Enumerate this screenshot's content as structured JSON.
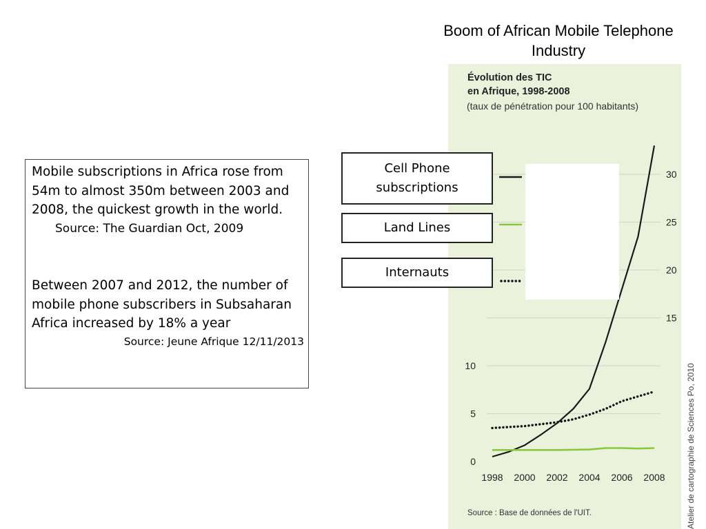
{
  "slide": {
    "title": "Boom of African Mobile Telephone Industry"
  },
  "textbox": {
    "para1": "Mobile subscriptions in Africa rose from 54m to almost 350m between 2003 and 2008, the quickest growth in the world.",
    "source1": "Source:  The Guardian Oct, 2009",
    "para2": "Between 2007 and 2012, the number of mobile phone subscribers in Subsaharan Africa increased by 18% a year",
    "source2": "Source: Jeune Afrique 12/11/2013"
  },
  "panel": {
    "title_line1": "Évolution des TIC",
    "title_line2": "en Afrique, 1998-2008",
    "subtitle": "(taux de pénétration pour 100 habitants)",
    "source": "Source : Base de données de l'UIT.",
    "credit": "Atelier de cartographie de Sciences Po, 2010"
  },
  "legend": {
    "cell": "Cell Phone subscriptions",
    "land": "Land Lines",
    "internet": "Internauts"
  },
  "colors": {
    "cell": "#1a1a1a",
    "land": "#8cc63f",
    "internet": "#111111",
    "panel_bg": "#eaf2dc"
  },
  "chart_data": {
    "type": "line",
    "title": "Évolution des TIC en Afrique, 1998-2008",
    "subtitle": "(taux de pénétration pour 100 habitants)",
    "xlabel": "",
    "ylabel": "",
    "x_ticks": [
      "1998",
      "2000",
      "2002",
      "2004",
      "2006",
      "2008"
    ],
    "y_ticks": [
      "0",
      "5",
      "10",
      "15",
      "20",
      "25",
      "30"
    ],
    "xlim": [
      1998,
      2008
    ],
    "ylim": [
      0,
      35
    ],
    "series": [
      {
        "name": "Cell Phone subscriptions",
        "style": "solid",
        "x": [
          1998,
          1999,
          2000,
          2001,
          2002,
          2003,
          2004,
          2005,
          2006,
          2007,
          2008
        ],
        "values": [
          0.5,
          1.0,
          1.7,
          2.8,
          4.0,
          5.5,
          7.6,
          12.5,
          18.0,
          23.5,
          33.0
        ]
      },
      {
        "name": "Land Lines",
        "style": "solid",
        "x": [
          1998,
          2000,
          2002,
          2004,
          2005,
          2006,
          2007,
          2008
        ],
        "values": [
          1.2,
          1.2,
          1.2,
          1.25,
          1.4,
          1.4,
          1.35,
          1.4
        ]
      },
      {
        "name": "Internauts",
        "style": "dotted",
        "x": [
          1998,
          1999,
          2000,
          2001,
          2002,
          2003,
          2004,
          2005,
          2006,
          2007,
          2008
        ],
        "values": [
          3.5,
          3.6,
          3.7,
          3.9,
          4.1,
          4.4,
          4.9,
          5.5,
          6.3,
          6.8,
          7.3
        ]
      }
    ]
  }
}
